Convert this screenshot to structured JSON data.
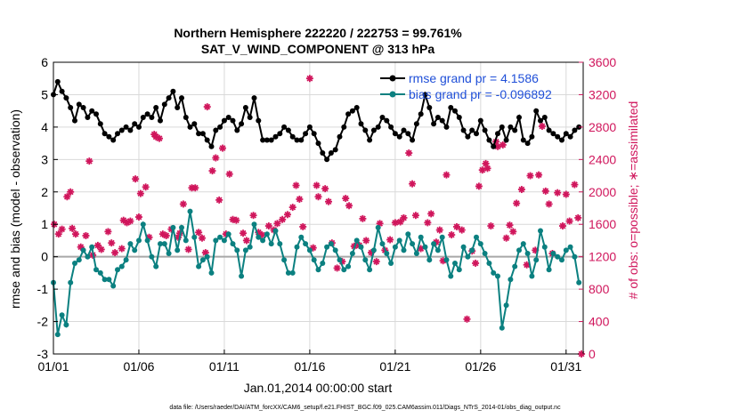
{
  "chart_data": {
    "type": "line",
    "title": "Northern Hemisphere 222220 / 222753 = 99.761%",
    "subtitle": "SAT_V_WIND_COMPONENT @ 313 hPa",
    "xlabel": "Jan.01,2014 00:00:00 start",
    "ylabel_left": "rmse and bias (model - observation)",
    "ylabel_right": "# of obs: o=possible; ∗=assimilated",
    "x_ticks": [
      "01/01",
      "01/06",
      "01/11",
      "01/16",
      "01/21",
      "01/26",
      "01/31"
    ],
    "x_tick_days": [
      1,
      6,
      11,
      16,
      21,
      26,
      31
    ],
    "xlim": [
      1,
      32
    ],
    "ylim_left": [
      -3,
      6
    ],
    "y_ticks_left": [
      "-3",
      "-2",
      "-1",
      "0",
      "1",
      "2",
      "3",
      "4",
      "5",
      "6"
    ],
    "ylim_right": [
      0,
      3600
    ],
    "y_ticks_right": [
      "0",
      "400",
      "800",
      "1200",
      "1600",
      "2000",
      "2400",
      "2800",
      "3200",
      "3600"
    ],
    "grid": true,
    "legend_position": "top-right",
    "footer": "data file: /Users/raeder/DAI/ATM_forcXX/CAM6_setup/f.e21.FHIST_BGC.f09_025.CAM6assim.011/Diags_NTrS_2014-01/obs_diag_output.nc",
    "colors": {
      "rmse": "#000000",
      "bias": "#0b8080",
      "obs": "#d0165c",
      "zero_line": "#a8a8a8",
      "legend_text": "#1f4fd8"
    },
    "series": [
      {
        "name": "rmse grand pr = 4.1586",
        "axis": "left",
        "x_start_day": 1,
        "step_days": 0.25,
        "values": [
          5.0,
          5.4,
          5.1,
          4.9,
          4.6,
          4.2,
          4.7,
          4.6,
          4.3,
          4.5,
          4.4,
          4.1,
          3.8,
          3.7,
          3.6,
          3.8,
          3.9,
          4.0,
          3.9,
          4.1,
          4.0,
          4.3,
          4.4,
          4.3,
          4.6,
          4.2,
          4.7,
          4.9,
          5.1,
          4.6,
          4.9,
          4.3,
          4.0,
          4.1,
          3.8,
          3.8,
          3.6,
          3.4,
          3.9,
          4.0,
          4.2,
          4.3,
          4.2,
          3.9,
          4.1,
          4.6,
          4.3,
          4.9,
          4.2,
          3.6,
          3.6,
          3.6,
          3.7,
          3.8,
          4.0,
          3.9,
          3.7,
          3.6,
          3.6,
          3.8,
          4.0,
          3.8,
          3.5,
          3.2,
          3.0,
          3.2,
          3.3,
          3.7,
          4.0,
          4.4,
          4.5,
          4.6,
          4.1,
          3.9,
          3.6,
          3.9,
          4.0,
          4.3,
          4.2,
          4.0,
          3.8,
          3.7,
          3.9,
          3.8,
          3.6,
          4.1,
          4.4,
          5.0,
          4.6,
          4.1,
          4.3,
          4.2,
          4.0,
          4.6,
          4.5,
          4.3,
          3.9,
          3.7,
          3.9,
          3.8,
          4.2,
          3.9,
          3.6,
          3.4,
          3.8,
          4.0,
          3.6,
          4.0,
          3.9,
          4.3,
          3.6,
          3.5,
          3.7,
          4.5,
          4.2,
          4.3,
          3.9,
          3.8,
          3.7,
          3.6,
          3.8,
          3.7,
          3.9,
          4.0
        ]
      },
      {
        "name": "bias grand pr = -0.096892",
        "axis": "left",
        "x_start_day": 1,
        "step_days": 0.25,
        "values": [
          -0.8,
          -2.4,
          -1.8,
          -2.1,
          -0.8,
          -0.2,
          -0.1,
          0.2,
          0.0,
          0.3,
          -0.4,
          -0.5,
          -0.7,
          -0.7,
          -0.9,
          -0.4,
          -0.3,
          -0.1,
          0.4,
          0.2,
          0.5,
          1.0,
          0.5,
          0.0,
          -0.3,
          0.4,
          0.4,
          0.1,
          0.9,
          0.2,
          0.9,
          0.5,
          1.4,
          0.6,
          -0.3,
          -0.1,
          0.0,
          -0.5,
          0.5,
          0.6,
          0.5,
          0.7,
          0.4,
          0.2,
          -0.6,
          0.2,
          0.3,
          1.0,
          0.6,
          0.5,
          0.7,
          0.4,
          0.8,
          0.4,
          -0.1,
          -0.5,
          -0.5,
          0.3,
          0.6,
          0.4,
          0.2,
          -0.1,
          -0.4,
          -0.2,
          0.3,
          0.4,
          0.2,
          -0.1,
          -0.4,
          -0.3,
          0.1,
          0.5,
          0.3,
          -0.1,
          -0.4,
          0.2,
          0.9,
          0.4,
          0.1,
          -0.2,
          0.3,
          0.5,
          0.2,
          0.7,
          0.4,
          0.1,
          0.6,
          0.3,
          -0.1,
          0.4,
          0.2,
          0.6,
          -0.1,
          -0.6,
          -0.2,
          -0.4,
          0.3,
          0.0,
          0.2,
          0.6,
          0.4,
          0.1,
          -0.2,
          -0.5,
          -0.6,
          -2.2,
          -1.5,
          -0.7,
          -0.3,
          0.2,
          0.4,
          0.1,
          -0.6,
          -0.1,
          0.8,
          0.3,
          -0.4,
          0.1,
          0.0,
          -0.1,
          0.2,
          0.3,
          0.0,
          -0.8
        ]
      },
      {
        "name": "obs assimilated (right axis)",
        "axis": "right",
        "style": "markers",
        "points": [
          [
            1.05,
            1600
          ],
          [
            1.3,
            1480
          ],
          [
            1.5,
            1540
          ],
          [
            1.8,
            1940
          ],
          [
            2.0,
            2000
          ],
          [
            2.1,
            1550
          ],
          [
            2.3,
            1480
          ],
          [
            2.6,
            1320
          ],
          [
            2.9,
            1460
          ],
          [
            3.1,
            2380
          ],
          [
            3.3,
            1220
          ],
          [
            3.6,
            1340
          ],
          [
            3.8,
            1290
          ],
          [
            4.2,
            1510
          ],
          [
            4.4,
            1370
          ],
          [
            4.6,
            1250
          ],
          [
            5.0,
            1300
          ],
          [
            5.1,
            1650
          ],
          [
            5.3,
            1620
          ],
          [
            5.5,
            1640
          ],
          [
            5.8,
            2160
          ],
          [
            6.0,
            1690
          ],
          [
            6.1,
            1980
          ],
          [
            6.4,
            2060
          ],
          [
            6.6,
            1440
          ],
          [
            6.9,
            2710
          ],
          [
            7.0,
            2680
          ],
          [
            7.2,
            2660
          ],
          [
            7.4,
            1480
          ],
          [
            7.6,
            1460
          ],
          [
            7.9,
            1540
          ],
          [
            8.3,
            1440
          ],
          [
            8.4,
            1490
          ],
          [
            8.6,
            1850
          ],
          [
            8.9,
            1290
          ],
          [
            9.1,
            2050
          ],
          [
            9.3,
            2050
          ],
          [
            9.5,
            1500
          ],
          [
            9.7,
            1430
          ],
          [
            9.9,
            1250
          ],
          [
            10.0,
            3050
          ],
          [
            10.3,
            2260
          ],
          [
            10.5,
            2420
          ],
          [
            10.7,
            1900
          ],
          [
            10.9,
            2540
          ],
          [
            11.1,
            1480
          ],
          [
            11.3,
            2220
          ],
          [
            11.5,
            1660
          ],
          [
            11.7,
            1650
          ],
          [
            12.1,
            1490
          ],
          [
            12.3,
            1400
          ],
          [
            12.7,
            1710
          ],
          [
            13.0,
            1500
          ],
          [
            13.2,
            1470
          ],
          [
            13.6,
            1580
          ],
          [
            13.9,
            1530
          ],
          [
            14.1,
            1610
          ],
          [
            14.4,
            1660
          ],
          [
            14.7,
            1720
          ],
          [
            15.0,
            1810
          ],
          [
            15.2,
            2080
          ],
          [
            15.4,
            1910
          ],
          [
            15.6,
            1570
          ],
          [
            16.0,
            3400
          ],
          [
            16.2,
            1310
          ],
          [
            16.4,
            2080
          ],
          [
            16.5,
            1940
          ],
          [
            16.9,
            2040
          ],
          [
            17.1,
            1880
          ],
          [
            17.3,
            1370
          ],
          [
            17.6,
            1060
          ],
          [
            17.9,
            1140
          ],
          [
            18.1,
            1920
          ],
          [
            18.3,
            1830
          ],
          [
            18.6,
            1330
          ],
          [
            18.9,
            1340
          ],
          [
            19.1,
            1670
          ],
          [
            19.3,
            1400
          ],
          [
            19.6,
            1250
          ],
          [
            19.9,
            1140
          ],
          [
            20.1,
            1610
          ],
          [
            20.4,
            1280
          ],
          [
            20.7,
            1410
          ],
          [
            21.0,
            1620
          ],
          [
            21.3,
            1630
          ],
          [
            21.5,
            1680
          ],
          [
            21.8,
            2480
          ],
          [
            22.0,
            2100
          ],
          [
            22.2,
            1710
          ],
          [
            22.5,
            1300
          ],
          [
            22.9,
            1620
          ],
          [
            23.1,
            1730
          ],
          [
            23.4,
            1380
          ],
          [
            23.6,
            1530
          ],
          [
            23.8,
            1150
          ],
          [
            24.0,
            2210
          ],
          [
            24.3,
            1470
          ],
          [
            24.6,
            1570
          ],
          [
            24.9,
            1530
          ],
          [
            25.2,
            430
          ],
          [
            25.5,
            1270
          ],
          [
            25.7,
            1120
          ],
          [
            25.9,
            2070
          ],
          [
            26.1,
            2270
          ],
          [
            26.3,
            2350
          ],
          [
            26.4,
            2290
          ],
          [
            26.6,
            1580
          ],
          [
            26.9,
            2620
          ],
          [
            27.0,
            2560
          ],
          [
            27.3,
            2580
          ],
          [
            27.5,
            1430
          ],
          [
            27.7,
            1590
          ],
          [
            27.9,
            1510
          ],
          [
            28.1,
            1860
          ],
          [
            28.4,
            2030
          ],
          [
            28.7,
            1100
          ],
          [
            28.9,
            2200
          ],
          [
            29.2,
            1280
          ],
          [
            29.4,
            2210
          ],
          [
            29.6,
            2810
          ],
          [
            29.8,
            2010
          ],
          [
            30.0,
            1850
          ],
          [
            30.2,
            1240
          ],
          [
            30.5,
            1990
          ],
          [
            30.8,
            1580
          ],
          [
            31.0,
            1970
          ],
          [
            31.2,
            1640
          ],
          [
            31.5,
            2090
          ],
          [
            31.7,
            1680
          ],
          [
            31.9,
            0
          ]
        ]
      }
    ]
  }
}
